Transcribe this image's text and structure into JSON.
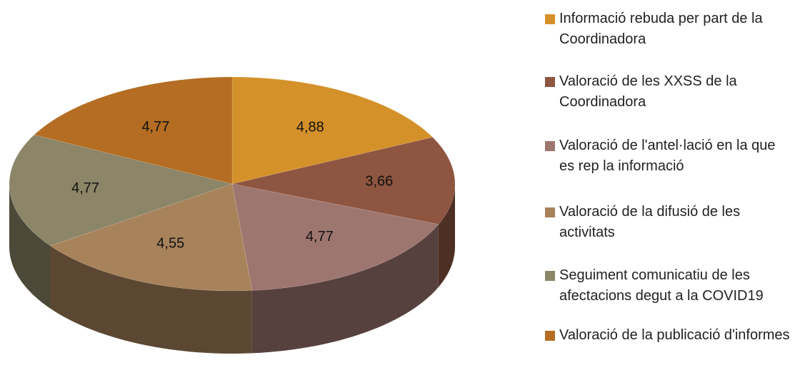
{
  "chart_data": {
    "type": "pie3d",
    "categories": [
      "Informació rebuda per part de la Coordinadora",
      "Valoració de les XXSS de la Coordinadora",
      "Valoració de l'antel·lació en la que es rep la informació",
      "Valoració de la difusió de les activitats",
      "Seguiment comunicatiu de les afectacions degut a la COVID19",
      "Valoració de la publicació d'informes"
    ],
    "values": [
      4.88,
      3.66,
      4.77,
      4.55,
      4.77,
      4.77
    ],
    "value_labels": [
      "4,88",
      "3,66",
      "4,77",
      "4,55",
      "4,77",
      "4,77"
    ],
    "colors": [
      "#d4912a",
      "#8e5540",
      "#9e7670",
      "#a8825a",
      "#8c8567",
      "#b46d22"
    ],
    "legend": "right"
  }
}
